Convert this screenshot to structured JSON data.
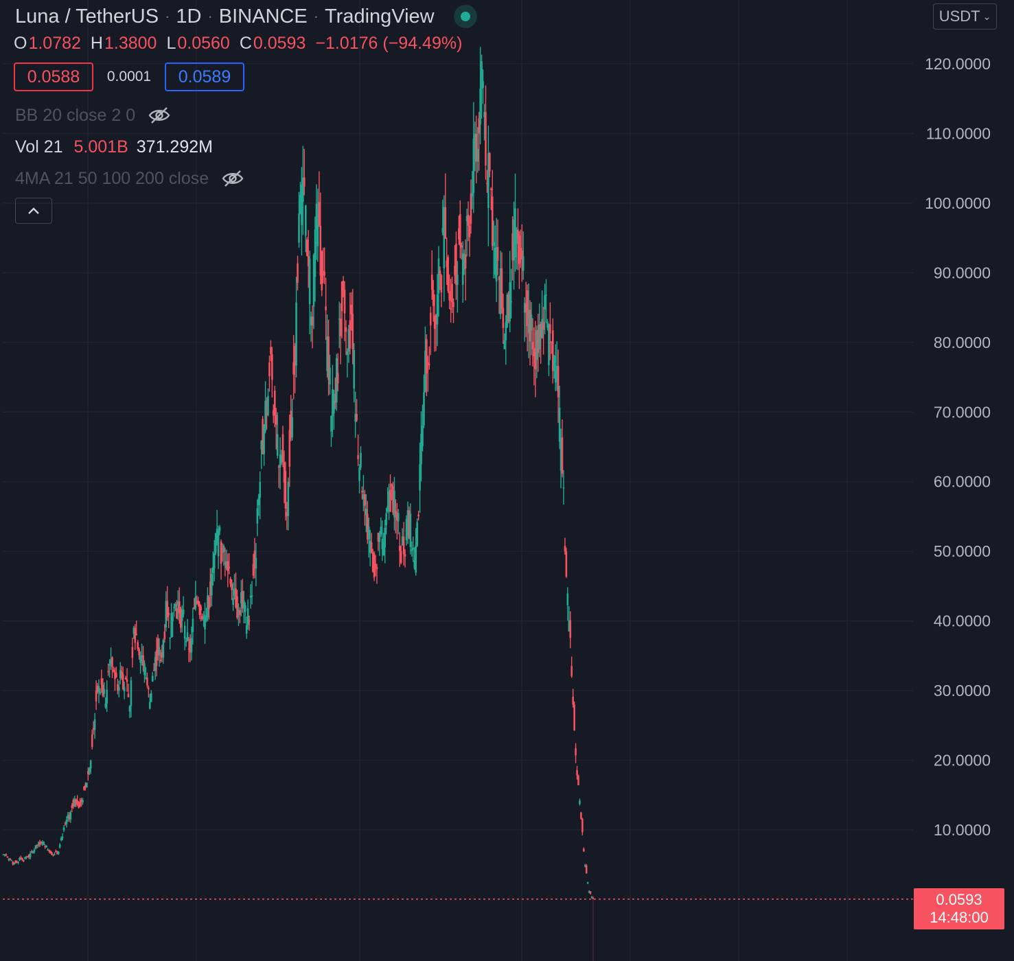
{
  "header": {
    "symbol": "Luna / TetherUS",
    "interval": "1D",
    "exchange": "BINANCE",
    "source": "TradingView",
    "status_color": "#22ab94"
  },
  "ohlc": {
    "o_label": "O",
    "o": "1.0782",
    "h_label": "H",
    "h": "1.3800",
    "l_label": "L",
    "l": "0.0560",
    "c_label": "C",
    "c": "0.0593",
    "change": "−1.0176 (−94.49%)"
  },
  "trade": {
    "sell": "0.0588",
    "spread": "0.0001",
    "buy": "0.0589"
  },
  "indicators": {
    "bb": "BB 20 close 2 0",
    "vol_label": "Vol 21",
    "vol_value_1": "5.001B",
    "vol_value_2": "371.292M",
    "ma": "4MA 21 50 100 200 close"
  },
  "currency": "USDT",
  "last_price": {
    "price": "0.0593",
    "countdown": "14:48:00"
  },
  "colors": {
    "up": "#22ab94",
    "down": "#f7525f",
    "background": "#161a25",
    "grid": "#242833"
  },
  "chart_data": {
    "type": "candlestick",
    "title": "",
    "xlabel": "",
    "ylabel": "",
    "ylim": [
      0,
      120
    ],
    "y_ticks": [
      "10.0000",
      "20.0000",
      "30.0000",
      "40.0000",
      "50.0000",
      "60.0000",
      "70.0000",
      "80.0000",
      "90.0000",
      "100.0000",
      "110.0000",
      "120.0000"
    ],
    "grid": true,
    "last": 0.0593,
    "close_series": [
      6.5,
      5.8,
      5.2,
      5.5,
      6.0,
      5.8,
      6.3,
      7.0,
      7.8,
      8.5,
      8.0,
      7.2,
      6.5,
      6.8,
      8.5,
      10.5,
      12.0,
      14.0,
      14.5,
      13.8,
      16.5,
      19.0,
      25.0,
      31.0,
      30.5,
      28.0,
      35.0,
      33.5,
      31.0,
      34.0,
      30.5,
      27.5,
      40.0,
      37.5,
      35.0,
      32.0,
      28.5,
      33.0,
      36.0,
      34.5,
      41.0,
      39.0,
      44.0,
      42.0,
      40.0,
      37.5,
      36.5,
      41.0,
      43.5,
      42.0,
      40.5,
      45.0,
      48.0,
      51.5,
      48.5,
      50.0,
      47.0,
      44.0,
      41.0,
      43.5,
      40.0,
      42.5,
      48.5,
      58.0,
      66.0,
      71.0,
      78.0,
      70.0,
      61.0,
      64.5,
      57.0,
      69.5,
      80.0,
      95.0,
      99.5,
      91.0,
      86.0,
      92.0,
      96.0,
      88.0,
      79.0,
      70.0,
      74.5,
      81.0,
      85.5,
      77.0,
      82.0,
      72.0,
      63.0,
      60.0,
      53.0,
      50.0,
      47.0,
      52.0,
      49.5,
      55.0,
      58.0,
      54.5,
      52.0,
      50.5,
      54.0,
      51.5,
      49.0,
      60.0,
      71.0,
      80.5,
      88.0,
      84.5,
      91.0,
      95.0,
      89.0,
      86.5,
      91.5,
      94.0,
      90.0,
      97.0,
      102.5,
      110.0,
      115.5,
      112.0,
      103.0,
      98.0,
      92.0,
      88.0,
      80.5,
      85.0,
      93.0,
      97.0,
      90.0,
      88.5,
      85.0,
      82.0,
      79.5,
      83.0,
      86.0,
      80.0,
      78.0,
      74.0,
      64.0,
      52.0,
      40.0,
      28.0,
      18.0,
      12.0,
      5.0,
      1.08,
      0.0593
    ]
  }
}
